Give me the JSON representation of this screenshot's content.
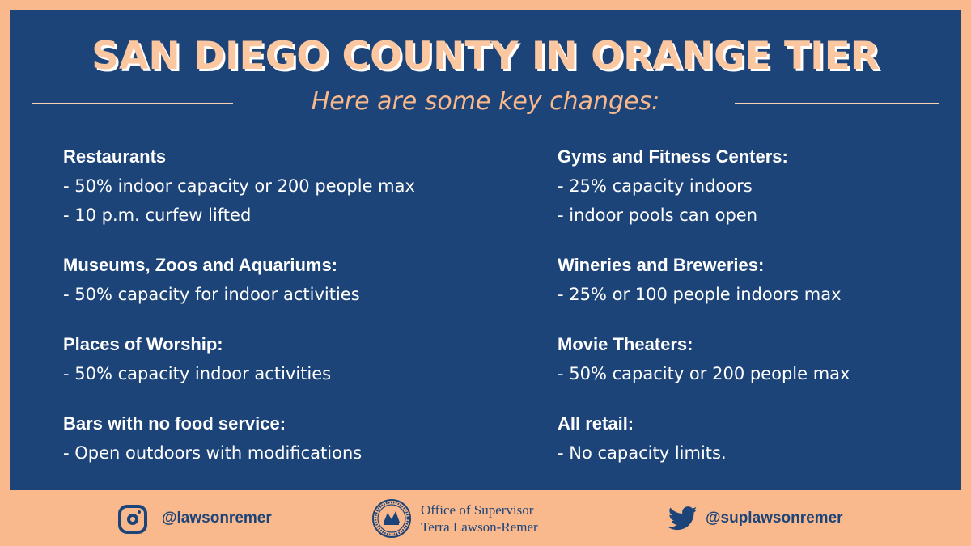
{
  "title": "SAN DIEGO COUNTY IN ORANGE TIER",
  "subtitle": "Here are some key changes:",
  "left_items": [
    {
      "heading": "Restaurants",
      "lines": [
        "- 50% indoor capacity or 200 people max",
        "- 10 p.m. curfew lifted"
      ]
    },
    {
      "heading": "Museums, Zoos and Aquariums:",
      "lines": [
        "- 50% capacity for indoor activities"
      ]
    },
    {
      "heading": "Places of Worship:",
      "lines": [
        "- 50% capacity indoor activities"
      ]
    },
    {
      "heading": "Bars with no food service:",
      "lines": [
        "- Open outdoors with modifications"
      ]
    }
  ],
  "right_items": [
    {
      "heading": "Gyms and Fitness Centers:",
      "lines": [
        "- 25% capacity indoors",
        "- indoor pools can open"
      ]
    },
    {
      "heading": "Wineries and Breweries:",
      "lines": [
        "- 25% or 100 people indoors max"
      ]
    },
    {
      "heading": "Movie Theaters:",
      "lines": [
        "- 50% capacity or 200 people max"
      ]
    },
    {
      "heading": "All retail:",
      "lines": [
        "- No capacity limits."
      ]
    }
  ],
  "footer": {
    "instagram_handle": "@lawsonremer",
    "office_line1": "Office of Supervisor",
    "office_line2": "Terra Lawson-Remer",
    "twitter_handle": "@suplawsonremer"
  },
  "colors": {
    "background_border": "#f9b98c",
    "panel": "#1d4478",
    "title": "#fbc7a0",
    "body_text": "#ffffff"
  },
  "icons": [
    "instagram-icon",
    "county-seal-icon",
    "twitter-icon"
  ]
}
